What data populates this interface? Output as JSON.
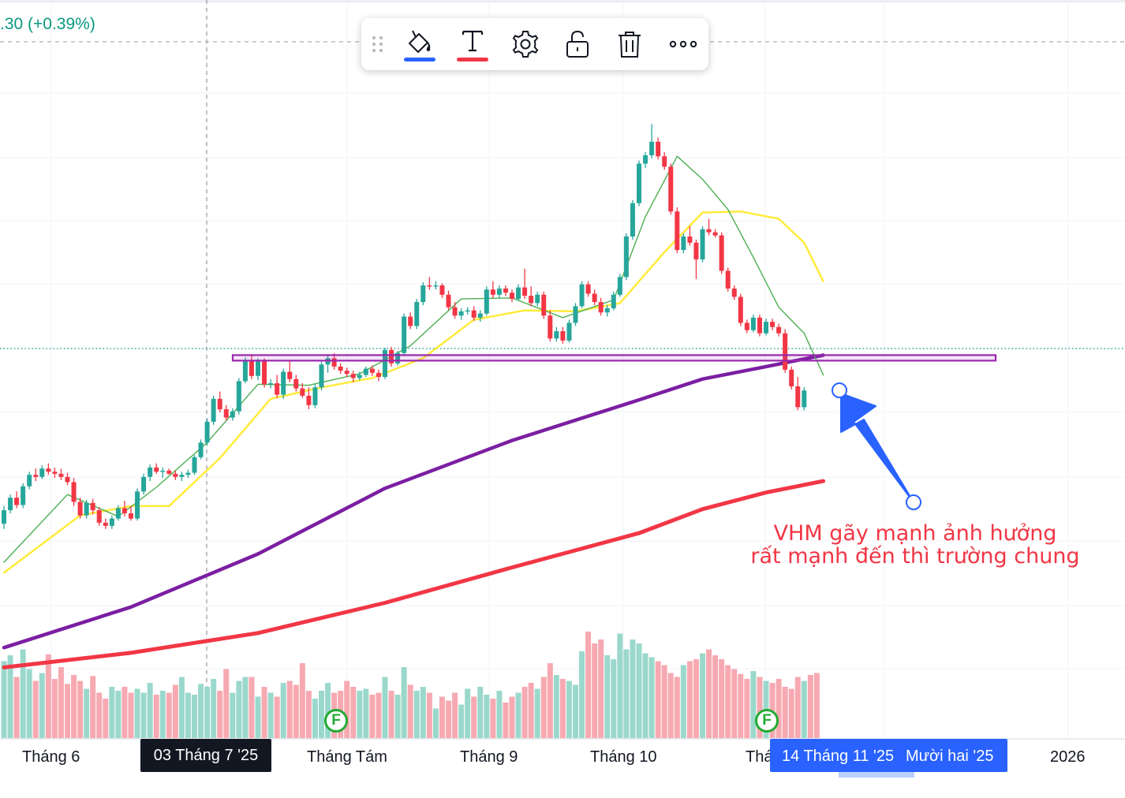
{
  "header": {
    "price_change": ".30 (+0.39%)"
  },
  "toolbar": {
    "items": [
      {
        "name": "drag-handle-icon"
      },
      {
        "name": "paint-bucket-icon",
        "underline_color": "#2962ff"
      },
      {
        "name": "text-color-icon",
        "underline_color": "#f23645"
      },
      {
        "name": "settings-gear-icon"
      },
      {
        "name": "unlock-icon"
      },
      {
        "name": "trash-icon"
      },
      {
        "name": "more-horizontal-icon"
      }
    ]
  },
  "annotation": {
    "line1": "VHM gãy mạnh ảnh hưởng",
    "line2": "rất mạnh đến thì trường chung",
    "color": "#f23645"
  },
  "time_axis": {
    "labels": [
      "Tháng 6",
      "Tháng Tám",
      "Tháng 9",
      "Tháng 10",
      "Thá",
      "2026"
    ],
    "highlight_crosshair": "03 Tháng 7 '25",
    "highlight_range_a": "14 Tháng 11 '25",
    "highlight_range_b": "Mười hai '25"
  },
  "events": [
    {
      "label": "F",
      "type": "earnings"
    },
    {
      "label": "F",
      "type": "earnings"
    }
  ],
  "chart_data": {
    "type": "candlestick",
    "colors": {
      "up": "#26a69a",
      "down": "#f23645",
      "vol_up": "#9bd8cc",
      "vol_down": "#f7a9b1",
      "sma_fast": "#4caf50",
      "sma_mid": "#ffeb3b",
      "sma_slow": "#7b1fa2",
      "sma_long": "#f23645",
      "zone": "#9c27b0",
      "arrow": "#2962ff"
    },
    "candles": [
      [
        44.5,
        46.2,
        44.0,
        45.8
      ],
      [
        45.8,
        47.3,
        45.5,
        47.0
      ],
      [
        47.0,
        47.6,
        46.0,
        46.3
      ],
      [
        46.3,
        48.4,
        46.0,
        48.1
      ],
      [
        48.1,
        49.5,
        47.8,
        49.2
      ],
      [
        49.2,
        49.8,
        48.6,
        49.0
      ],
      [
        49.0,
        50.1,
        48.8,
        49.8
      ],
      [
        49.8,
        50.3,
        49.2,
        49.5
      ],
      [
        49.5,
        49.9,
        48.9,
        49.3
      ],
      [
        49.3,
        49.8,
        48.7,
        49.0
      ],
      [
        49.0,
        49.4,
        48.2,
        48.5
      ],
      [
        48.5,
        48.9,
        46.2,
        46.6
      ],
      [
        46.6,
        47.0,
        45.0,
        45.3
      ],
      [
        45.3,
        46.8,
        45.0,
        46.5
      ],
      [
        46.5,
        46.9,
        45.4,
        45.8
      ],
      [
        45.8,
        46.1,
        44.3,
        44.6
      ],
      [
        44.6,
        45.0,
        44.0,
        44.3
      ],
      [
        44.3,
        45.3,
        44.0,
        45.0
      ],
      [
        45.0,
        46.3,
        44.8,
        46.0
      ],
      [
        46.0,
        46.7,
        45.2,
        45.5
      ],
      [
        45.5,
        46.2,
        44.8,
        45.0
      ],
      [
        45.0,
        47.9,
        44.8,
        47.6
      ],
      [
        47.6,
        49.3,
        47.3,
        49.0
      ],
      [
        49.0,
        50.2,
        48.6,
        49.9
      ],
      [
        49.9,
        50.3,
        49.3,
        49.5
      ],
      [
        49.5,
        49.9,
        48.9,
        49.6
      ],
      [
        49.6,
        49.8,
        49.2,
        49.3
      ],
      [
        49.3,
        49.6,
        48.7,
        49.0
      ],
      [
        49.0,
        49.5,
        48.6,
        49.2
      ],
      [
        49.2,
        49.7,
        48.9,
        49.4
      ],
      [
        49.4,
        51.1,
        49.2,
        50.9
      ],
      [
        50.9,
        52.6,
        50.7,
        52.3
      ],
      [
        52.3,
        54.6,
        52.0,
        54.3
      ],
      [
        54.3,
        56.8,
        54.0,
        56.5
      ],
      [
        56.5,
        57.2,
        55.2,
        55.5
      ],
      [
        55.5,
        55.9,
        54.4,
        54.7
      ],
      [
        54.7,
        55.6,
        54.4,
        55.3
      ],
      [
        55.3,
        58.5,
        55.0,
        58.2
      ],
      [
        58.2,
        60.5,
        58.0,
        60.2
      ],
      [
        60.2,
        60.8,
        58.4,
        58.7
      ],
      [
        58.7,
        60.4,
        58.3,
        60.1
      ],
      [
        60.1,
        60.4,
        57.6,
        57.9
      ],
      [
        57.9,
        58.4,
        57.5,
        58.0
      ],
      [
        58.0,
        58.8,
        56.6,
        56.9
      ],
      [
        56.9,
        59.4,
        56.5,
        59.1
      ],
      [
        59.1,
        60.2,
        58.1,
        58.4
      ],
      [
        58.4,
        58.8,
        57.2,
        57.5
      ],
      [
        57.5,
        58.0,
        56.6,
        56.8
      ],
      [
        56.8,
        57.6,
        55.5,
        55.9
      ],
      [
        55.9,
        57.9,
        55.6,
        57.6
      ],
      [
        57.6,
        60.1,
        57.3,
        59.8
      ],
      [
        59.8,
        60.8,
        59.0,
        60.4
      ],
      [
        60.4,
        60.9,
        59.3,
        59.6
      ],
      [
        59.6,
        59.9,
        58.9,
        59.2
      ],
      [
        59.2,
        59.5,
        58.6,
        58.9
      ],
      [
        58.9,
        59.2,
        58.1,
        58.5
      ],
      [
        58.5,
        59.1,
        58.3,
        58.8
      ],
      [
        58.8,
        59.6,
        58.6,
        59.4
      ],
      [
        59.4,
        59.7,
        58.7,
        59.0
      ],
      [
        59.0,
        59.3,
        58.2,
        58.6
      ],
      [
        58.6,
        61.4,
        58.4,
        61.2
      ],
      [
        61.2,
        61.5,
        59.6,
        59.9
      ],
      [
        59.9,
        61.1,
        59.7,
        60.9
      ],
      [
        60.9,
        64.7,
        60.6,
        64.4
      ],
      [
        64.4,
        64.8,
        63.2,
        63.5
      ],
      [
        63.5,
        66.1,
        63.2,
        65.8
      ],
      [
        65.8,
        67.7,
        65.5,
        67.4
      ],
      [
        67.4,
        68.2,
        67.0,
        67.3
      ],
      [
        67.3,
        67.8,
        67.0,
        67.4
      ],
      [
        67.4,
        67.6,
        66.2,
        66.5
      ],
      [
        66.5,
        66.9,
        65.0,
        65.3
      ],
      [
        65.3,
        65.8,
        64.2,
        64.5
      ],
      [
        64.5,
        65.2,
        64.1,
        64.9
      ],
      [
        64.9,
        65.3,
        64.6,
        65.0
      ],
      [
        65.0,
        65.4,
        64.0,
        64.3
      ],
      [
        64.3,
        65.0,
        63.9,
        64.7
      ],
      [
        64.7,
        67.3,
        64.5,
        67.0
      ],
      [
        67.0,
        67.8,
        66.2,
        66.5
      ],
      [
        66.5,
        67.4,
        66.2,
        67.1
      ],
      [
        67.1,
        67.4,
        66.4,
        66.7
      ],
      [
        66.7,
        67.0,
        65.8,
        66.1
      ],
      [
        66.1,
        67.5,
        65.9,
        67.2
      ],
      [
        67.2,
        69.0,
        66.1,
        66.4
      ],
      [
        66.4,
        67.3,
        65.4,
        65.7
      ],
      [
        65.7,
        66.8,
        65.4,
        66.5
      ],
      [
        66.5,
        66.8,
        64.2,
        64.5
      ],
      [
        64.5,
        65.0,
        62.0,
        62.3
      ],
      [
        62.3,
        63.4,
        62.0,
        63.0
      ],
      [
        63.0,
        63.4,
        61.8,
        62.1
      ],
      [
        62.1,
        64.1,
        61.9,
        63.8
      ],
      [
        63.8,
        65.7,
        63.5,
        65.4
      ],
      [
        65.4,
        67.8,
        65.2,
        67.5
      ],
      [
        67.5,
        67.8,
        66.3,
        66.6
      ],
      [
        66.6,
        67.0,
        65.5,
        65.8
      ],
      [
        65.8,
        66.2,
        64.5,
        64.8
      ],
      [
        64.8,
        65.5,
        64.4,
        65.2
      ],
      [
        65.2,
        66.8,
        65.0,
        66.5
      ],
      [
        66.5,
        68.5,
        66.3,
        68.2
      ],
      [
        68.2,
        72.4,
        67.9,
        72.1
      ],
      [
        72.1,
        75.6,
        71.8,
        75.3
      ],
      [
        75.3,
        79.4,
        75.0,
        79.1
      ],
      [
        79.1,
        80.2,
        78.7,
        79.9
      ],
      [
        79.9,
        82.9,
        79.6,
        81.2
      ],
      [
        81.2,
        81.6,
        79.5,
        79.8
      ],
      [
        79.8,
        80.2,
        78.5,
        78.8
      ],
      [
        78.8,
        79.1,
        74.2,
        74.5
      ],
      [
        74.5,
        74.9,
        70.5,
        70.8
      ],
      [
        70.8,
        72.4,
        70.5,
        72.1
      ],
      [
        72.1,
        73.1,
        71.2,
        71.5
      ],
      [
        71.5,
        71.8,
        68.0,
        69.9
      ],
      [
        69.9,
        73.1,
        69.6,
        72.8
      ],
      [
        72.8,
        73.8,
        72.2,
        72.5
      ],
      [
        72.5,
        72.8,
        72.0,
        72.2
      ],
      [
        72.2,
        72.5,
        68.5,
        68.8
      ],
      [
        68.8,
        69.1,
        66.8,
        67.1
      ],
      [
        67.1,
        67.4,
        66.0,
        66.3
      ],
      [
        66.3,
        66.6,
        63.5,
        63.8
      ],
      [
        63.8,
        64.1,
        62.8,
        63.1
      ],
      [
        63.1,
        64.6,
        62.9,
        64.3
      ],
      [
        64.3,
        64.6,
        62.5,
        62.8
      ],
      [
        62.8,
        64.2,
        62.6,
        63.9
      ],
      [
        63.9,
        64.2,
        63.1,
        63.4
      ],
      [
        63.4,
        63.7,
        62.5,
        62.8
      ],
      [
        62.8,
        63.2,
        59.0,
        59.3
      ],
      [
        59.3,
        59.6,
        57.4,
        57.7
      ],
      [
        57.7,
        58.6,
        55.4,
        55.7
      ],
      [
        55.7,
        57.6,
        55.4,
        57.3
      ]
    ],
    "volume": [
      78,
      84,
      62,
      90,
      70,
      58,
      66,
      85,
      60,
      72,
      55,
      64,
      58,
      50,
      63,
      46,
      40,
      52,
      48,
      52,
      46,
      50,
      46,
      56,
      44,
      48,
      46,
      54,
      62,
      46,
      44,
      55,
      52,
      60,
      48,
      70,
      46,
      58,
      62,
      62,
      42,
      52,
      46,
      42,
      56,
      58,
      54,
      76,
      48,
      40,
      48,
      56,
      46,
      48,
      58,
      52,
      48,
      50,
      44,
      46,
      62,
      48,
      44,
      72,
      54,
      48,
      52,
      46,
      30,
      42,
      38,
      46,
      34,
      50,
      42,
      52,
      44,
      40,
      48,
      36,
      42,
      46,
      52,
      56,
      50,
      62,
      76,
      64,
      60,
      58,
      54,
      88,
      108,
      96,
      100,
      84,
      80,
      106,
      90,
      100,
      96,
      86,
      82,
      78,
      74,
      66,
      62,
      74,
      78,
      80,
      86,
      90,
      84,
      80,
      74,
      70,
      65,
      60,
      68,
      62,
      58,
      56,
      60,
      52,
      50,
      62,
      58,
      64,
      66
    ],
    "sma_fast": [
      [
        0,
        40.8
      ],
      [
        10,
        47.3
      ],
      [
        18,
        45.2
      ],
      [
        24,
        48.0
      ],
      [
        32,
        52.3
      ],
      [
        40,
        57.9
      ],
      [
        48,
        57.8
      ],
      [
        56,
        58.9
      ],
      [
        64,
        61.6
      ],
      [
        72,
        66.1
      ],
      [
        80,
        66.2
      ],
      [
        88,
        64.3
      ],
      [
        96,
        66.0
      ],
      [
        101,
        74.0
      ],
      [
        106,
        79.8
      ],
      [
        110,
        77.6
      ],
      [
        114,
        74.7
      ],
      [
        118,
        70.1
      ],
      [
        122,
        65.3
      ],
      [
        126,
        62.8
      ],
      [
        129,
        58.8
      ]
    ],
    "sma_mid": [
      [
        0,
        39.8
      ],
      [
        12,
        45.3
      ],
      [
        20,
        46.2
      ],
      [
        26,
        46.2
      ],
      [
        34,
        50.8
      ],
      [
        42,
        56.5
      ],
      [
        50,
        57.6
      ],
      [
        58,
        58.5
      ],
      [
        66,
        60.4
      ],
      [
        74,
        64.1
      ],
      [
        82,
        65.0
      ],
      [
        90,
        64.9
      ],
      [
        97,
        65.7
      ],
      [
        104,
        70.6
      ],
      [
        110,
        74.4
      ],
      [
        116,
        74.5
      ],
      [
        122,
        73.8
      ],
      [
        126,
        71.5
      ],
      [
        129,
        67.8
      ]
    ],
    "sma_slow": [
      [
        0,
        32.6
      ],
      [
        20,
        36.5
      ],
      [
        40,
        41.6
      ],
      [
        60,
        47.9
      ],
      [
        80,
        52.5
      ],
      [
        100,
        56.4
      ],
      [
        110,
        58.4
      ],
      [
        120,
        59.6
      ],
      [
        129,
        60.7
      ]
    ],
    "sma_long": [
      [
        0,
        30.7
      ],
      [
        20,
        32.1
      ],
      [
        40,
        34.0
      ],
      [
        60,
        36.9
      ],
      [
        80,
        40.3
      ],
      [
        100,
        43.6
      ],
      [
        110,
        45.9
      ],
      [
        120,
        47.5
      ],
      [
        129,
        48.6
      ]
    ],
    "zone": {
      "low": 60.2,
      "high": 60.7
    },
    "arrow": {
      "tail_x": 1158,
      "tail_y": 637,
      "head_x": 1064,
      "head_y": 495
    }
  }
}
